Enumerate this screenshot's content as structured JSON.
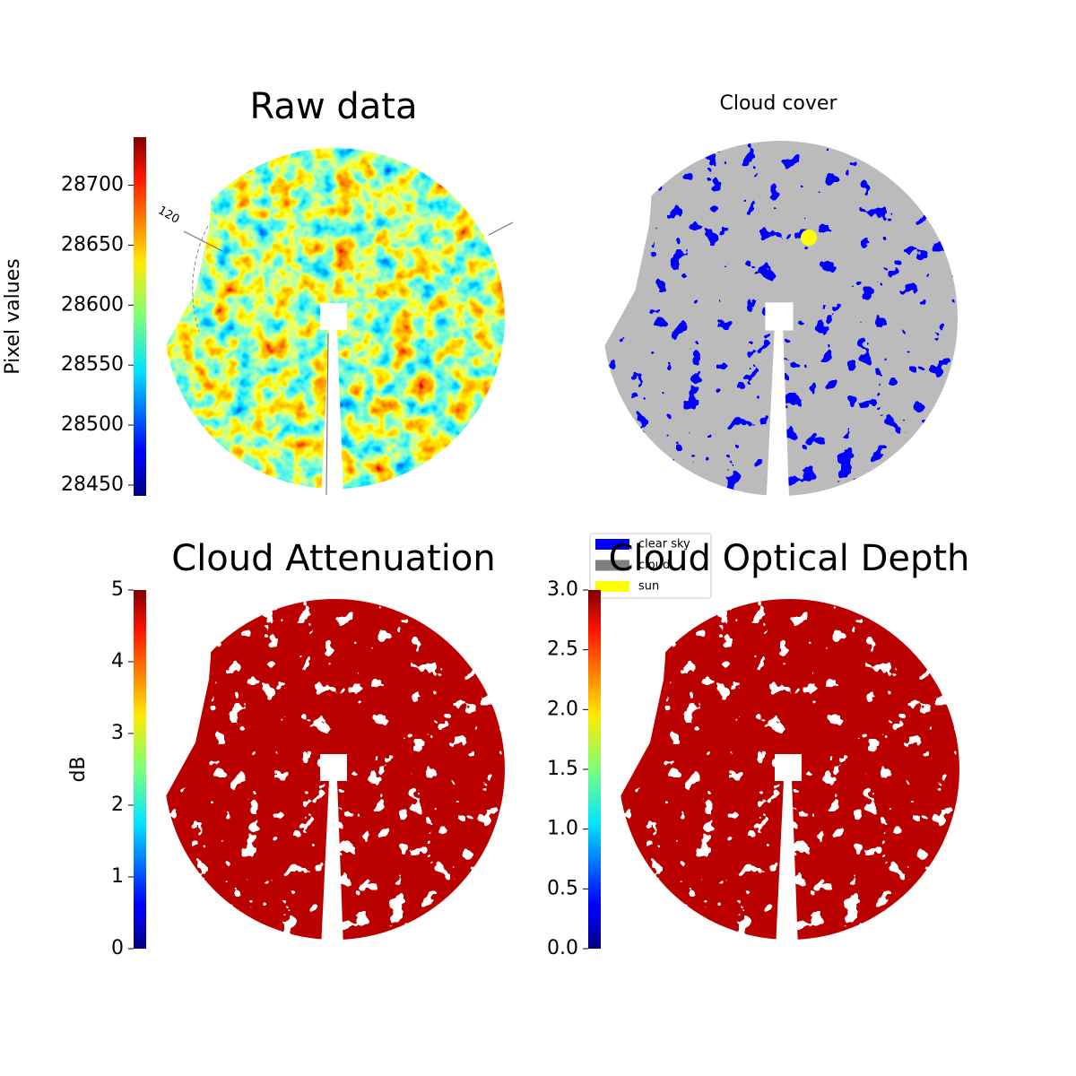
{
  "chart_data": [
    {
      "type": "image",
      "title": "Raw data",
      "colorbar_label": "Pixel values",
      "colormap": "jet",
      "clim": [
        28441,
        28740
      ],
      "cticks": [
        28450,
        28500,
        28550,
        28600,
        28650,
        28700
      ],
      "annotations": [
        "120"
      ]
    },
    {
      "type": "categorical",
      "title": "Cloud cover",
      "series": [
        {
          "name": "clear sky",
          "color": "#0000ff"
        },
        {
          "name": "cloud",
          "color": "#808080"
        },
        {
          "name": "sun",
          "color": "#ffff00"
        }
      ]
    },
    {
      "type": "image",
      "title": "Cloud Attenuation",
      "colorbar_label": "dB",
      "colormap": "jet",
      "clim": [
        0,
        5
      ],
      "cticks": [
        0,
        1,
        2,
        3,
        4,
        5
      ]
    },
    {
      "type": "image",
      "title": "Cloud Optical Depth",
      "colormap": "jet",
      "clim": [
        0,
        3
      ],
      "cticks": [
        {
          "value": 0,
          "label": "0.0"
        },
        {
          "value": 0.5,
          "label": "0.5"
        },
        {
          "value": 1,
          "label": "1.0"
        },
        {
          "value": 1.5,
          "label": "1.5"
        },
        {
          "value": 2,
          "label": "2.0"
        },
        {
          "value": 2.5,
          "label": "2.5"
        },
        {
          "value": 3,
          "label": "3.0"
        }
      ]
    }
  ]
}
